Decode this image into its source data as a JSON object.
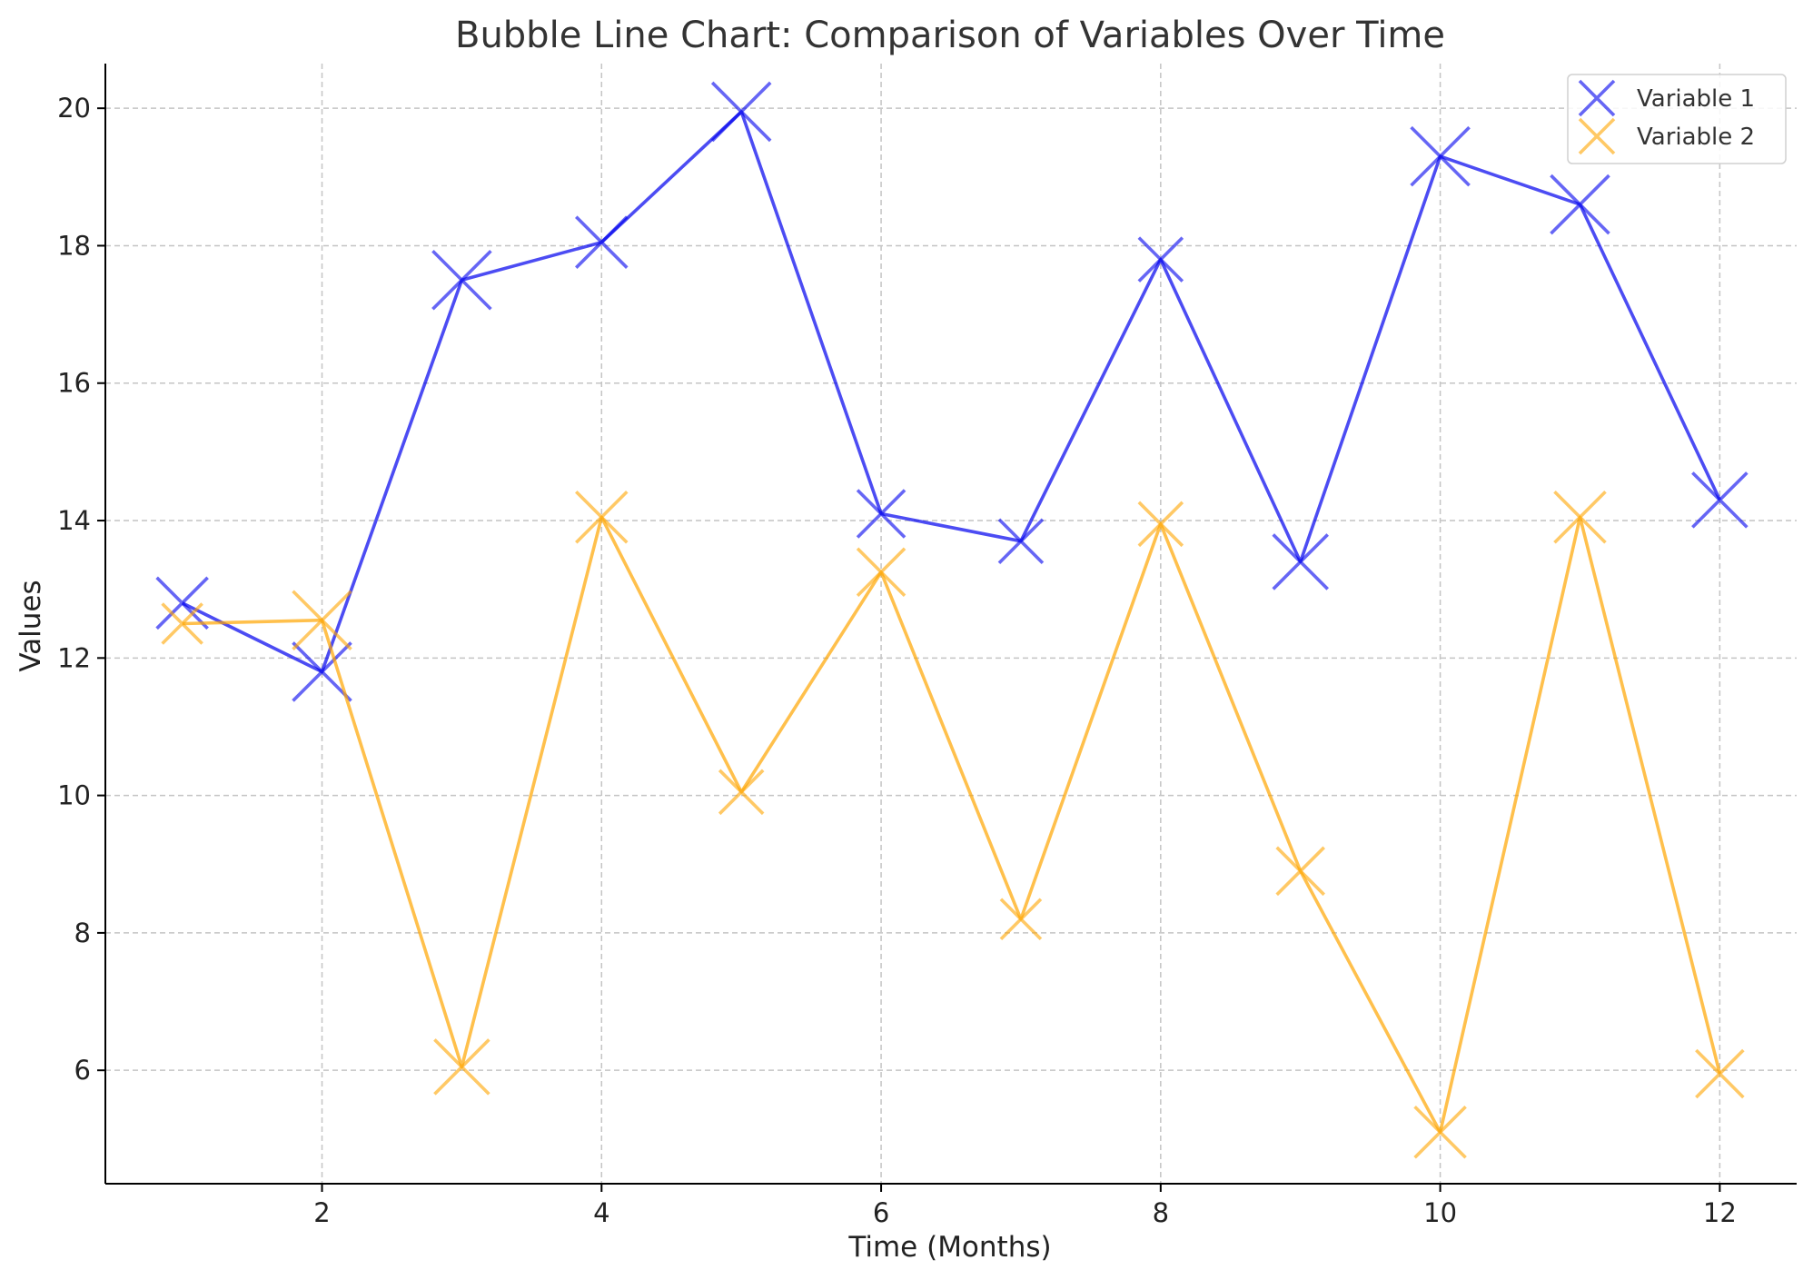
{
  "chart_data": {
    "type": "line",
    "title": "Bubble Line Chart: Comparison of Variables Over Time",
    "xlabel": "Time (Months)",
    "ylabel": "Values",
    "x": [
      1,
      2,
      3,
      4,
      5,
      6,
      7,
      8,
      9,
      10,
      11,
      12
    ],
    "xlim": [
      0.45,
      12.55
    ],
    "ylim": [
      4.35,
      20.65
    ],
    "xticks": [
      2,
      4,
      6,
      8,
      10,
      12
    ],
    "yticks": [
      6,
      8,
      10,
      12,
      14,
      16,
      18,
      20
    ],
    "grid": true,
    "legend_position": "top-right",
    "marker": "x",
    "series": [
      {
        "name": "Variable 1",
        "color": "#0000ee",
        "values": [
          12.8,
          11.8,
          17.5,
          18.05,
          19.95,
          14.1,
          13.7,
          17.8,
          13.4,
          19.3,
          18.6,
          14.3
        ],
        "marker_sizes": [
          28,
          32,
          32,
          28,
          32,
          26,
          24,
          24,
          30,
          32,
          32,
          30
        ]
      },
      {
        "name": "Variable 2",
        "color": "#ffa500",
        "values": [
          12.5,
          12.55,
          6.05,
          14.05,
          10.05,
          13.25,
          8.2,
          13.95,
          8.9,
          5.1,
          14.05,
          5.95
        ],
        "marker_sizes": [
          22,
          32,
          30,
          28,
          24,
          26,
          22,
          24,
          26,
          28,
          28,
          26
        ]
      }
    ]
  }
}
